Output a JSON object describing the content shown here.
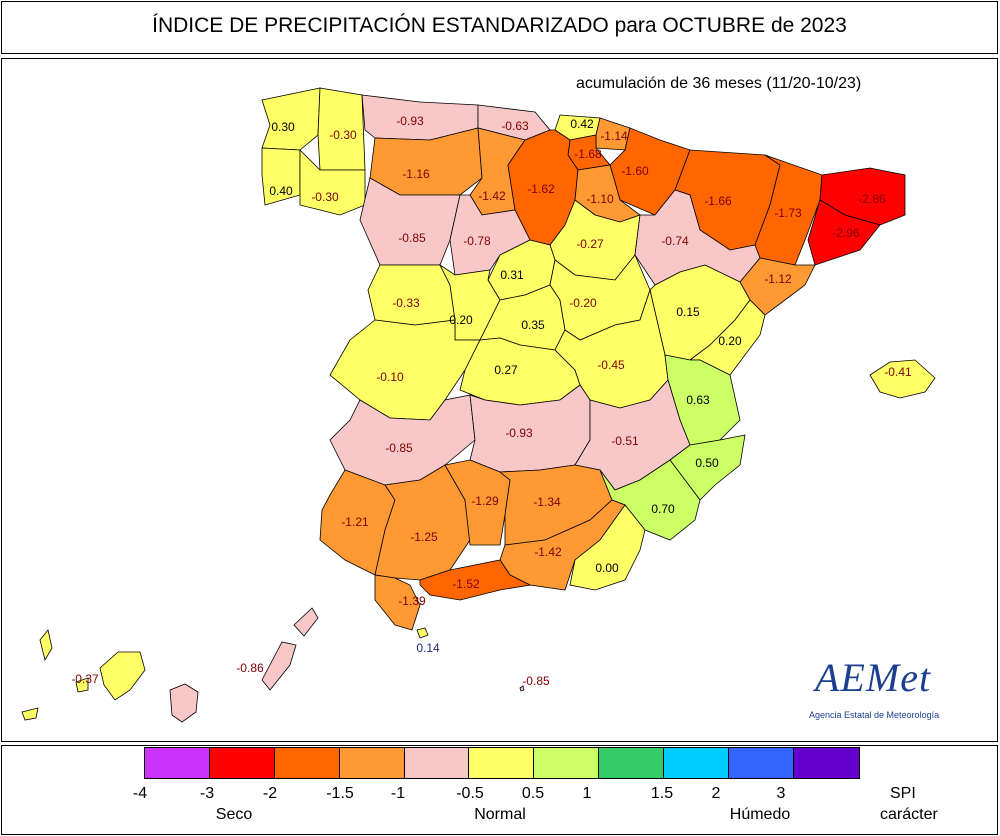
{
  "title": "ÍNDICE DE PRECIPITACIÓN ESTANDARIZADO para OCTUBRE de 2023",
  "subtitle": "acumulación de 36 meses (11/20-10/23)",
  "legend": {
    "colors": [
      "#cc33ff",
      "#ff0000",
      "#ff6600",
      "#ff9933",
      "#f8c8c8",
      "#ffff66",
      "#ccff66",
      "#33cc66",
      "#00ccff",
      "#3366ff",
      "#6600cc"
    ],
    "ticks": [
      "-4",
      "-3",
      "-2",
      "-1.5",
      "-1",
      "-0.5",
      "0.5",
      "1",
      "1.5",
      "2",
      "3"
    ],
    "categories": [
      "Seco",
      "Normal",
      "Húmedo"
    ],
    "spi_label": "SPI",
    "caracter_label": "carácter"
  },
  "logo": {
    "word": "AEMet",
    "subtitle": "Agencia Estatal de Meteorología"
  },
  "regions": [
    {
      "id": "a-coruna",
      "value": "0.30",
      "color": "#ffff66"
    },
    {
      "id": "lugo",
      "value": "-0.30",
      "color": "#ffff66"
    },
    {
      "id": "pontevedra",
      "value": "0.40",
      "color": "#ffff66"
    },
    {
      "id": "ourense",
      "value": "-0.30",
      "color": "#ffff66"
    },
    {
      "id": "asturias",
      "value": "-0.93",
      "color": "#f8c8c8"
    },
    {
      "id": "cantabria",
      "value": "-0.63",
      "color": "#f8c8c8"
    },
    {
      "id": "bizkaia",
      "value": "0.42",
      "color": "#ffff66"
    },
    {
      "id": "gipuzkoa",
      "value": "-1.14",
      "color": "#ff9933"
    },
    {
      "id": "alava",
      "value": "-1.68",
      "color": "#ff6600"
    },
    {
      "id": "navarra",
      "value": "-1.60",
      "color": "#ff6600"
    },
    {
      "id": "leon",
      "value": "-1.16",
      "color": "#ff9933"
    },
    {
      "id": "palencia",
      "value": "-1.42",
      "color": "#ff9933"
    },
    {
      "id": "burgos",
      "value": "-1.62",
      "color": "#ff6600"
    },
    {
      "id": "la-rioja",
      "value": "-1.10",
      "color": "#ff9933"
    },
    {
      "id": "huesca",
      "value": "-1.66",
      "color": "#ff6600"
    },
    {
      "id": "lleida",
      "value": "-1.73",
      "color": "#ff6600"
    },
    {
      "id": "girona",
      "value": "-2.86",
      "color": "#ff0000"
    },
    {
      "id": "barcelona",
      "value": "-2.96",
      "color": "#ff0000"
    },
    {
      "id": "zamora",
      "value": "-0.85",
      "color": "#f8c8c8"
    },
    {
      "id": "valladolid",
      "value": "-0.78",
      "color": "#f8c8c8"
    },
    {
      "id": "soria",
      "value": "-0.27",
      "color": "#ffff66"
    },
    {
      "id": "zaragoza",
      "value": "-0.74",
      "color": "#f8c8c8"
    },
    {
      "id": "tarragona",
      "value": "-1.12",
      "color": "#ff9933"
    },
    {
      "id": "segovia",
      "value": "0.31",
      "color": "#ffff66"
    },
    {
      "id": "salamanca",
      "value": "-0.33",
      "color": "#ffff66"
    },
    {
      "id": "avila",
      "value": "0.20",
      "color": "#ffff66"
    },
    {
      "id": "madrid",
      "value": "0.35",
      "color": "#ffff66"
    },
    {
      "id": "guadalajara",
      "value": "-0.20",
      "color": "#ffff66"
    },
    {
      "id": "teruel",
      "value": "0.15",
      "color": "#ffff66"
    },
    {
      "id": "castellon",
      "value": "0.20",
      "color": "#ffff66"
    },
    {
      "id": "caceres",
      "value": "-0.10",
      "color": "#ffff66"
    },
    {
      "id": "toledo",
      "value": "0.27",
      "color": "#ffff66"
    },
    {
      "id": "cuenca",
      "value": "-0.45",
      "color": "#ffff66"
    },
    {
      "id": "valencia",
      "value": "0.63",
      "color": "#ccff66"
    },
    {
      "id": "mallorca",
      "value": "-0.41",
      "color": "#ffff66"
    },
    {
      "id": "badajoz",
      "value": "-0.85",
      "color": "#f8c8c8"
    },
    {
      "id": "ciudad-real",
      "value": "-0.93",
      "color": "#f8c8c8"
    },
    {
      "id": "albacete",
      "value": "-0.51",
      "color": "#f8c8c8"
    },
    {
      "id": "alicante",
      "value": "0.50",
      "color": "#ccff66"
    },
    {
      "id": "huelva",
      "value": "-1.21",
      "color": "#ff9933"
    },
    {
      "id": "sevilla",
      "value": "-1.25",
      "color": "#ff9933"
    },
    {
      "id": "cordoba",
      "value": "-1.29",
      "color": "#ff9933"
    },
    {
      "id": "jaen",
      "value": "-1.34",
      "color": "#ff9933"
    },
    {
      "id": "murcia",
      "value": "0.70",
      "color": "#ccff66"
    },
    {
      "id": "granada",
      "value": "-1.42",
      "color": "#ff9933"
    },
    {
      "id": "almeria",
      "value": "0.00",
      "color": "#ffff66"
    },
    {
      "id": "cadiz",
      "value": "-1.39",
      "color": "#ff9933"
    },
    {
      "id": "malaga",
      "value": "-1.52",
      "color": "#ff6600"
    },
    {
      "id": "ceuta",
      "value": "0.14",
      "color": "#ffff66"
    },
    {
      "id": "melilla",
      "value": "-0.85",
      "color": "#f8c8c8"
    },
    {
      "id": "santa-cruz-tenerife",
      "value": "-0.37",
      "color": "#ffff66"
    },
    {
      "id": "las-palmas",
      "value": "-0.86",
      "color": "#f8c8c8"
    }
  ]
}
